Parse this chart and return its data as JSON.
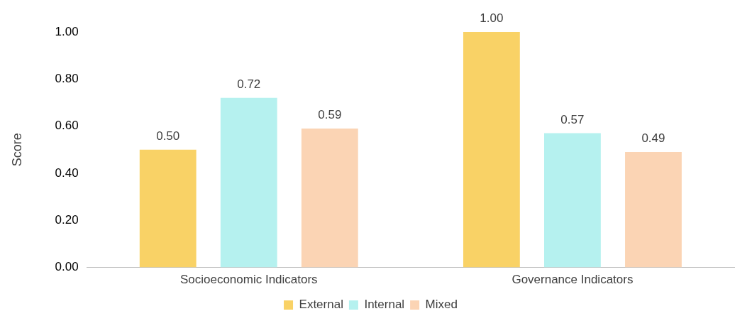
{
  "chart_data": {
    "type": "bar",
    "ylabel": "Score",
    "categories": [
      "Socioeconomic Indicators",
      "Governance Indicators"
    ],
    "series": [
      {
        "name": "External",
        "color": "#f9d266",
        "values": [
          0.5,
          1.0
        ],
        "value_labels": [
          "0.50",
          "1.00"
        ]
      },
      {
        "name": "Internal",
        "color": "#b5f1ef",
        "values": [
          0.72,
          0.57
        ],
        "value_labels": [
          "0.72",
          "0.57"
        ]
      },
      {
        "name": "Mixed",
        "color": "#fbd4b4",
        "values": [
          0.59,
          0.49
        ],
        "value_labels": [
          "0.59",
          "0.49"
        ]
      }
    ],
    "ylim": [
      0,
      1
    ],
    "yticks": [
      {
        "value": 0,
        "label": "0.00"
      },
      {
        "value": 0.2,
        "label": "0.20"
      },
      {
        "value": 0.4,
        "label": "0.40"
      },
      {
        "value": 0.6,
        "label": "0.60"
      },
      {
        "value": 0.8,
        "label": "0.80"
      },
      {
        "value": 1,
        "label": "1.00"
      }
    ],
    "grid": false,
    "legend": "bottom"
  }
}
